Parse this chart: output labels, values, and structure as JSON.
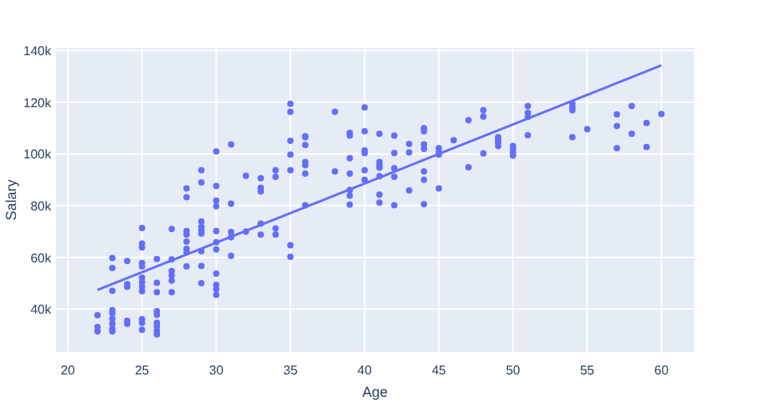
{
  "chart_data": {
    "type": "scatter",
    "xlabel": "Age",
    "ylabel": "Salary",
    "xlim": [
      19.2,
      62.2
    ],
    "ylim": [
      23400,
      141000
    ],
    "xticks": [
      20,
      25,
      30,
      35,
      40,
      45,
      50,
      55,
      60
    ],
    "yticks": [
      {
        "value": 40000,
        "label": "40k"
      },
      {
        "value": 60000,
        "label": "60k"
      },
      {
        "value": 80000,
        "label": "80k"
      },
      {
        "value": 100000,
        "label": "100k"
      },
      {
        "value": 120000,
        "label": "120k"
      },
      {
        "value": 140000,
        "label": "140k"
      }
    ],
    "grid": true,
    "marker": "circle",
    "series": [
      {
        "color": "#636efa",
        "x": [
          22,
          22,
          22,
          23,
          23,
          23,
          23,
          23,
          23,
          23,
          23,
          23,
          24,
          24,
          24,
          24,
          24,
          25,
          25,
          25,
          25,
          25,
          25,
          25,
          25,
          25,
          25,
          25,
          25,
          26,
          26,
          26,
          26,
          26,
          26,
          26,
          26,
          26,
          27,
          27,
          27,
          27,
          27,
          27,
          28,
          28,
          28,
          28,
          28,
          28,
          28,
          28,
          29,
          29,
          29,
          29,
          29,
          29,
          29,
          29,
          29,
          30,
          30,
          30,
          30,
          30,
          30,
          30,
          30,
          30,
          30,
          30,
          31,
          31,
          31,
          31,
          31,
          32,
          32,
          33,
          33,
          33,
          33,
          33,
          34,
          34,
          34,
          34,
          35,
          35,
          35,
          35,
          35,
          35,
          35,
          36,
          36,
          36,
          36,
          36,
          36,
          36,
          38,
          38,
          39,
          39,
          39,
          39,
          39,
          39,
          39,
          40,
          40,
          40,
          40,
          40,
          40,
          41,
          41,
          41,
          41,
          41,
          41,
          41,
          42,
          42,
          42,
          42,
          42,
          43,
          43,
          43,
          44,
          44,
          44,
          44,
          44,
          44,
          44,
          45,
          45,
          45,
          45,
          46,
          47,
          47,
          48,
          48,
          48,
          49,
          49,
          49,
          49,
          50,
          50,
          50,
          50,
          51,
          51,
          51,
          51,
          54,
          54,
          54,
          54,
          55,
          57,
          57,
          57,
          58,
          58,
          59,
          59,
          60
        ],
        "values": [
          37600,
          33100,
          31400,
          59800,
          55900,
          47100,
          39600,
          38400,
          36300,
          34300,
          32400,
          31400,
          58600,
          49600,
          48600,
          35500,
          34300,
          71400,
          65300,
          63900,
          57800,
          56500,
          52200,
          50400,
          48600,
          46900,
          36100,
          34700,
          32000,
          59400,
          50200,
          46500,
          39200,
          37800,
          34700,
          33300,
          31600,
          30200,
          71000,
          59200,
          54700,
          53100,
          51000,
          46500,
          86700,
          83300,
          70200,
          68800,
          66100,
          63300,
          62000,
          56500,
          93700,
          89000,
          73900,
          71800,
          70400,
          69200,
          62400,
          56700,
          50000,
          101000,
          87600,
          82000,
          79800,
          70200,
          65900,
          63100,
          53700,
          49400,
          47800,
          45500,
          103700,
          80800,
          69800,
          67800,
          60600,
          91600,
          70000,
          90600,
          86900,
          85500,
          73100,
          68800,
          93700,
          91200,
          71200,
          68800,
          119400,
          116300,
          105100,
          99800,
          93700,
          64700,
          60200,
          106900,
          106500,
          103500,
          96900,
          95700,
          92400,
          80200,
          116300,
          93300,
          108200,
          107100,
          98400,
          92400,
          86100,
          83900,
          80400,
          118000,
          108800,
          101400,
          100400,
          93700,
          90000,
          107800,
          96900,
          95700,
          94700,
          91400,
          84300,
          81200,
          107100,
          100400,
          94500,
          91200,
          80200,
          103900,
          100600,
          85900,
          110000,
          108800,
          103700,
          102000,
          93300,
          90000,
          80600,
          102200,
          100800,
          99800,
          86700,
          105300,
          113100,
          94900,
          116900,
          114500,
          100200,
          106500,
          105500,
          104500,
          103100,
          103100,
          102000,
          100600,
          99400,
          118600,
          115900,
          114300,
          107300,
          119400,
          118000,
          116900,
          106500,
          109600,
          115300,
          110800,
          102200,
          118600,
          107800,
          112000,
          102700,
          115500
        ]
      },
      {
        "type": "line",
        "color": "#636efa",
        "x": [
          22,
          60
        ],
        "values": [
          47400,
          134300
        ],
        "marker": "none"
      }
    ]
  }
}
